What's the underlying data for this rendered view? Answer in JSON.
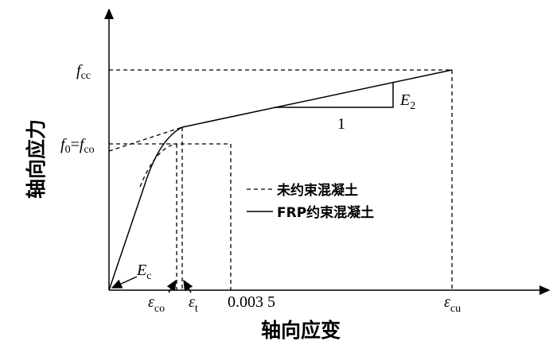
{
  "y_axis_label": "轴向应力",
  "x_axis_label": "轴向应变",
  "labels": {
    "f_cc": {
      "symbol": "f",
      "subscript": "cc"
    },
    "f_0_f_co": {
      "symbol": "f",
      "subscript": "0",
      "equals": "=",
      "symbol2": "f",
      "subscript2": "co"
    },
    "E_2": {
      "symbol": "E",
      "subscript": "2"
    },
    "slope_run": "1",
    "E_c": {
      "symbol": "E",
      "subscript": "c"
    },
    "eps_co": {
      "symbol": "ε",
      "subscript": "co"
    },
    "eps_t": {
      "symbol": "ε",
      "subscript": "t"
    },
    "strain_0035": "0.003 5",
    "eps_cu": {
      "symbol": "ε",
      "subscript": "cu"
    }
  },
  "legend": {
    "unconfined": "未约束混凝土",
    "frp_confined": "FRP约束混凝土"
  }
}
